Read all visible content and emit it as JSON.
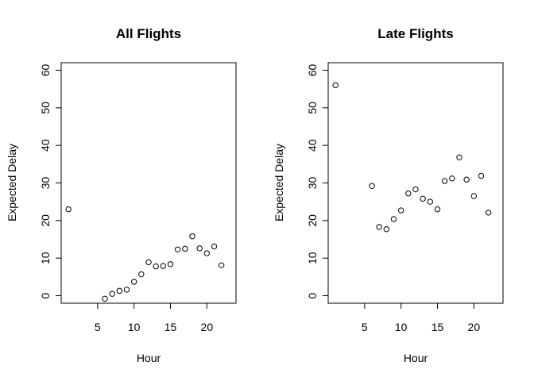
{
  "chart_data": [
    {
      "type": "scatter",
      "title": "All Flights",
      "xlabel": "Hour",
      "ylabel": "Expected Delay",
      "xlim": [
        0,
        24
      ],
      "ylim": [
        -2,
        62
      ],
      "xticks": [
        5,
        10,
        15,
        20
      ],
      "yticks": [
        0,
        10,
        20,
        30,
        40,
        50,
        60
      ],
      "grid": false,
      "x": [
        1,
        6,
        7,
        8,
        9,
        10,
        11,
        12,
        13,
        14,
        15,
        16,
        17,
        18,
        19,
        20,
        21,
        22
      ],
      "y": [
        23,
        -0.8,
        0.5,
        1.3,
        1.6,
        3.7,
        5.7,
        8.9,
        7.8,
        7.9,
        8.4,
        12.3,
        12.5,
        15.8,
        12.6,
        11.3,
        13.1,
        8.1
      ]
    },
    {
      "type": "scatter",
      "title": "Late Flights",
      "xlabel": "Hour",
      "ylabel": "Expected Delay",
      "xlim": [
        0,
        24
      ],
      "ylim": [
        -2,
        62
      ],
      "xticks": [
        5,
        10,
        15,
        20
      ],
      "yticks": [
        0,
        10,
        20,
        30,
        40,
        50,
        60
      ],
      "grid": false,
      "x": [
        1,
        6,
        7,
        8,
        9,
        10,
        11,
        12,
        13,
        14,
        15,
        16,
        17,
        18,
        19,
        20,
        21,
        22
      ],
      "y": [
        56,
        29.2,
        18.3,
        17.7,
        20.4,
        22.7,
        27.2,
        28.3,
        25.8,
        25,
        23,
        30.5,
        31.2,
        36.8,
        30.9,
        26.5,
        31.9,
        22.1
      ]
    }
  ]
}
